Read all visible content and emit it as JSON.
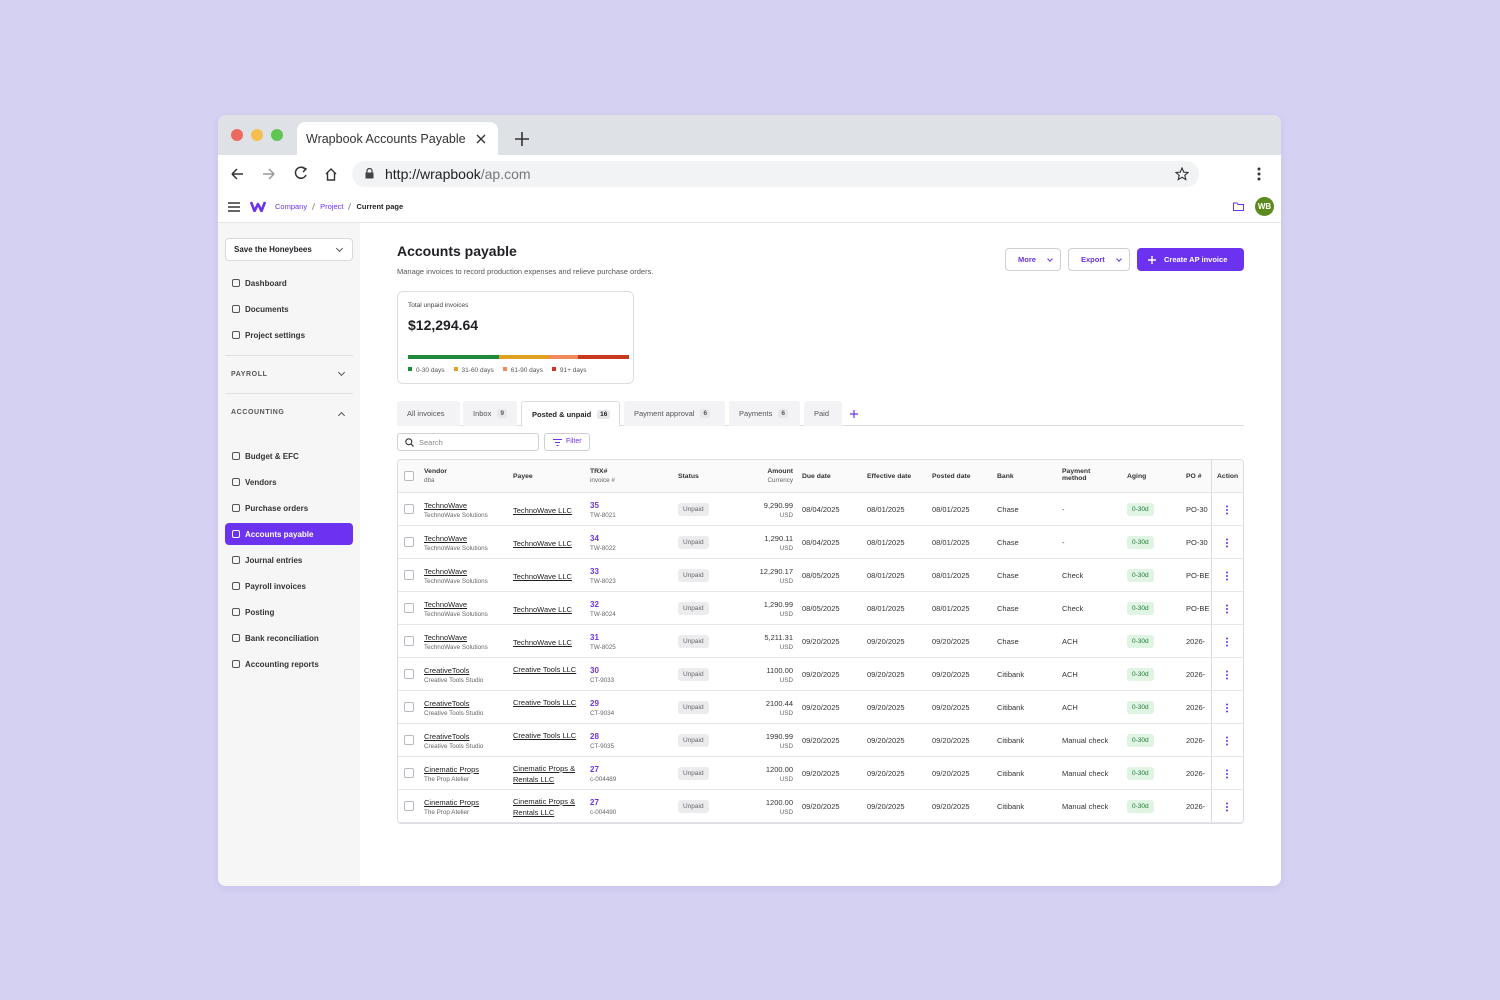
{
  "browser": {
    "tab_title": "Wrapbook Accounts Payable",
    "url_host": "http://wrapbook",
    "url_path": "/ap.com"
  },
  "topbar": {
    "breadcrumbs": [
      "Company",
      "Project",
      "Current page"
    ],
    "avatar": "WB"
  },
  "sidebar": {
    "project": "Save the Honeybees",
    "items": [
      "Dashboard",
      "Documents",
      "Project settings"
    ],
    "sections": [
      {
        "title": "PAYROLL",
        "items": []
      },
      {
        "title": "ACCOUNTING",
        "items": [
          "Budget & EFC",
          "Vendors",
          "Purchase orders",
          "Accounts payable",
          "Journal entries",
          "Payroll invoices",
          "Posting",
          "Bank reconciliation",
          "Accounting reports"
        ]
      }
    ]
  },
  "header": {
    "title": "Accounts payable",
    "subtitle": "Manage invoices to record production expenses and relieve purchase orders.",
    "buttons": [
      "More",
      "Export",
      "Create AP invoice"
    ]
  },
  "summary": {
    "label": "Total unpaid invoices",
    "total": "$12,294.64",
    "aging": [
      {
        "label": "0-30 days",
        "color": "#1e8a3c",
        "share": 41
      },
      {
        "label": "31-60 days",
        "color": "#e0a020",
        "share": 23
      },
      {
        "label": "61-90 days",
        "color": "#f08a5d",
        "share": 13
      },
      {
        "label": "91+ days",
        "color": "#c8381e",
        "share": 23
      }
    ]
  },
  "tabs": [
    {
      "label": "All invoices"
    },
    {
      "label": "Inbox",
      "count": 9
    },
    {
      "label": "Posted & unpaid",
      "count": 16
    },
    {
      "label": "Payment approval",
      "count": 6
    },
    {
      "label": "Payments",
      "count": 6
    },
    {
      "label": "Paid"
    }
  ],
  "toolbar": {
    "search": "Search",
    "filter": "Filter"
  },
  "table": {
    "columns": [
      {
        "label": "Vendor",
        "sub": "dba"
      },
      {
        "label": "Payee"
      },
      {
        "label": "TRX#",
        "sub": "invoice #"
      },
      {
        "label": "Status"
      },
      {
        "label": "Amount",
        "sub": "Currency"
      },
      {
        "label": "Due date"
      },
      {
        "label": "Effective date"
      },
      {
        "label": "Posted date"
      },
      {
        "label": "Bank"
      },
      {
        "label": "Payment method"
      },
      {
        "label": "Aging"
      },
      {
        "label": "PO #"
      },
      {
        "label": "Action"
      }
    ],
    "rows": [
      {
        "vendor": "TechnoWave",
        "dba": "TechnoWave Solutions",
        "payee": "TechnoWave LLC",
        "trx": "35",
        "invoice": "TW-8021",
        "status": "Unpaid",
        "amount": "9,290.99",
        "currency": "USD",
        "due": "08/04/2025",
        "effective": "08/01/2025",
        "posted": "08/01/2025",
        "bank": "Chase",
        "method": "-",
        "aging": "0-30d",
        "po": "PO-30"
      },
      {
        "vendor": "TechnoWave",
        "dba": "TechnoWave Solutions",
        "payee": "TechnoWave LLC",
        "trx": "34",
        "invoice": "TW-8022",
        "status": "Unpaid",
        "amount": "1,290.11",
        "currency": "USD",
        "due": "08/04/2025",
        "effective": "08/01/2025",
        "posted": "08/01/2025",
        "bank": "Chase",
        "method": "-",
        "aging": "0-30d",
        "po": "PO-30"
      },
      {
        "vendor": "TechnoWave",
        "dba": "TechnoWave Solutions",
        "payee": "TechnoWave LLC",
        "trx": "33",
        "invoice": "TW-8023",
        "status": "Unpaid",
        "amount": "12,290.17",
        "currency": "USD",
        "due": "08/05/2025",
        "effective": "08/01/2025",
        "posted": "08/01/2025",
        "bank": "Chase",
        "method": "Check",
        "aging": "0-30d",
        "po": "PO-BE"
      },
      {
        "vendor": "TechnoWave",
        "dba": "TechnoWave Solutions",
        "payee": "TechnoWave LLC",
        "trx": "32",
        "invoice": "TW-8024",
        "status": "Unpaid",
        "amount": "1,290.99",
        "currency": "USD",
        "due": "08/05/2025",
        "effective": "08/01/2025",
        "posted": "08/01/2025",
        "bank": "Chase",
        "method": "Check",
        "aging": "0-30d",
        "po": "PO-BE"
      },
      {
        "vendor": "TechnoWave",
        "dba": "TechnoWave Solutions",
        "payee": "TechnoWave LLC",
        "trx": "31",
        "invoice": "TW-8025",
        "status": "Unpaid",
        "amount": "5,211.31",
        "currency": "USD",
        "due": "09/20/2025",
        "effective": "09/20/2025",
        "posted": "09/20/2025",
        "bank": "Chase",
        "method": "ACH",
        "aging": "0-30d",
        "po": "2026-"
      },
      {
        "vendor": "CreativeTools",
        "dba": "Creative Tools Studio",
        "payee": "Creative Tools LLC",
        "trx": "30",
        "invoice": "CT-9033",
        "status": "Unpaid",
        "amount": "1100.00",
        "currency": "USD",
        "due": "09/20/2025",
        "effective": "09/20/2025",
        "posted": "09/20/2025",
        "bank": "Citibank",
        "method": "ACH",
        "aging": "0-30d",
        "po": "2026-"
      },
      {
        "vendor": "CreativeTools",
        "dba": "Creative Tools Studio",
        "payee": "Creative Tools LLC",
        "trx": "29",
        "invoice": "CT-9034",
        "status": "Unpaid",
        "amount": "2100.44",
        "currency": "USD",
        "due": "09/20/2025",
        "effective": "09/20/2025",
        "posted": "09/20/2025",
        "bank": "Citibank",
        "method": "ACH",
        "aging": "0-30d",
        "po": "2026-"
      },
      {
        "vendor": "CreativeTools",
        "dba": "Creative Tools Studio",
        "payee": "Creative Tools LLC",
        "trx": "28",
        "invoice": "CT-9035",
        "status": "Unpaid",
        "amount": "1990.99",
        "currency": "USD",
        "due": "09/20/2025",
        "effective": "09/20/2025",
        "posted": "09/20/2025",
        "bank": "Citibank",
        "method": "Manual check",
        "aging": "0-30d",
        "po": "2026-"
      },
      {
        "vendor": "Cinematic Props",
        "dba": "The Prop Atelier",
        "payee": "Cinematic Props & Rentals LLC",
        "trx": "27",
        "invoice": "c-004489",
        "status": "Unpaid",
        "amount": "1200.00",
        "currency": "USD",
        "due": "09/20/2025",
        "effective": "09/20/2025",
        "posted": "09/20/2025",
        "bank": "Citibank",
        "method": "Manual check",
        "aging": "0-30d",
        "po": "2026-"
      },
      {
        "vendor": "Cinematic Props",
        "dba": "The Prop Atelier",
        "payee": "Cinematic Props & Rentals LLC",
        "trx": "27",
        "invoice": "c-004490",
        "status": "Unpaid",
        "amount": "1200.00",
        "currency": "USD",
        "due": "09/20/2025",
        "effective": "09/20/2025",
        "posted": "09/20/2025",
        "bank": "Citibank",
        "method": "Manual check",
        "aging": "0-30d",
        "po": "2026-"
      }
    ]
  }
}
